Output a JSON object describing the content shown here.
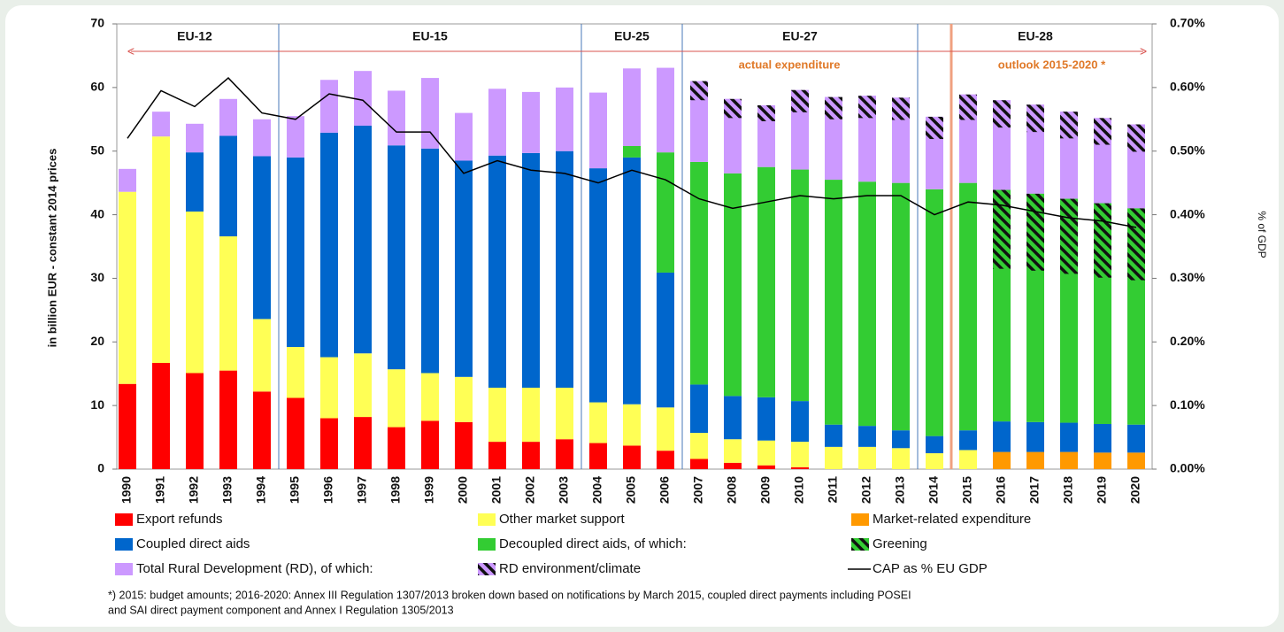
{
  "chart_data": {
    "type": "bar",
    "stacked": true,
    "y_label": "in billion EUR - constant 2014 prices",
    "y2_label": "% of GDP",
    "categories": [
      "1990",
      "1991",
      "1992",
      "1993",
      "1994",
      "1995",
      "1996",
      "1997",
      "1998",
      "1999",
      "2000",
      "2001",
      "2002",
      "2003",
      "2004",
      "2005",
      "2006",
      "2007",
      "2008",
      "2009",
      "2010",
      "2011",
      "2012",
      "2013",
      "2014",
      "2015",
      "2016",
      "2017",
      "2018",
      "2019",
      "2020"
    ],
    "ylim": [
      0,
      70
    ],
    "yticks": [
      0,
      10,
      20,
      30,
      40,
      50,
      60,
      70
    ],
    "y2lim": [
      0,
      0.7
    ],
    "y2ticks": [
      {
        "value": 0,
        "label": "0.00%"
      },
      {
        "value": 0.1,
        "label": "0.10%"
      },
      {
        "value": 0.2,
        "label": "0.20%"
      },
      {
        "value": 0.3,
        "label": "0.30%"
      },
      {
        "value": 0.4,
        "label": "0.40%"
      },
      {
        "value": 0.5,
        "label": "0.50%"
      },
      {
        "value": 0.6,
        "label": "0.60%"
      },
      {
        "value": 0.7,
        "label": "0.70%"
      }
    ],
    "series": [
      {
        "name": "Export refunds",
        "color": "#ff0000",
        "values": [
          13.4,
          16.7,
          15.1,
          15.5,
          12.2,
          11.2,
          8.0,
          8.2,
          6.6,
          7.6,
          7.4,
          4.3,
          4.3,
          4.7,
          4.1,
          3.7,
          2.9,
          1.6,
          1.0,
          0.6,
          0.3,
          null,
          null,
          null,
          null,
          null,
          null,
          null,
          null,
          null,
          null
        ]
      },
      {
        "name": "Other market support",
        "color": "#ffff55",
        "values": [
          30.2,
          35.6,
          25.4,
          21.1,
          11.4,
          8.0,
          9.6,
          10.0,
          9.1,
          7.5,
          7.1,
          8.5,
          8.5,
          8.1,
          6.4,
          6.5,
          6.8,
          4.1,
          3.7,
          3.9,
          4.0,
          3.5,
          3.5,
          3.3,
          2.5,
          3.0,
          null,
          null,
          null,
          null,
          null
        ]
      },
      {
        "name": "Market-related expenditure",
        "color": "#ff9900",
        "values": [
          null,
          null,
          null,
          null,
          null,
          null,
          null,
          null,
          null,
          null,
          null,
          null,
          null,
          null,
          null,
          null,
          null,
          null,
          null,
          null,
          null,
          null,
          null,
          null,
          null,
          null,
          2.7,
          2.7,
          2.7,
          2.6,
          2.6
        ]
      },
      {
        "name": "Coupled direct aids",
        "color": "#0066cc",
        "values": [
          null,
          null,
          9.3,
          15.8,
          25.6,
          29.8,
          35.3,
          35.8,
          35.2,
          35.3,
          34.0,
          36.5,
          36.9,
          37.2,
          36.8,
          38.8,
          21.2,
          7.6,
          6.8,
          6.8,
          6.4,
          3.5,
          3.3,
          2.8,
          2.7,
          3.1,
          4.8,
          4.7,
          4.6,
          4.5,
          4.4
        ]
      },
      {
        "name": "Decoupled direct aids, of which:",
        "color": "#33cc33",
        "values": [
          null,
          null,
          null,
          null,
          null,
          null,
          null,
          null,
          null,
          null,
          null,
          null,
          null,
          null,
          null,
          1.8,
          18.9,
          35.0,
          35.0,
          36.2,
          36.4,
          38.5,
          38.4,
          38.9,
          38.8,
          38.9,
          36.4,
          35.9,
          35.2,
          34.7,
          34.0
        ]
      },
      {
        "name": "Greening",
        "color": "#33cc33",
        "pattern": "hatch",
        "of": 4,
        "values": [
          null,
          null,
          null,
          null,
          null,
          null,
          null,
          null,
          null,
          null,
          null,
          null,
          null,
          null,
          null,
          null,
          null,
          null,
          null,
          null,
          null,
          null,
          null,
          null,
          null,
          null,
          12.4,
          12.1,
          11.8,
          11.7,
          11.3
        ]
      },
      {
        "name": "Total Rural Development (RD), of which:",
        "color": "#cc99ff",
        "values": [
          3.6,
          3.9,
          4.5,
          5.8,
          5.8,
          6.5,
          8.3,
          8.6,
          8.6,
          11.1,
          7.5,
          10.5,
          9.6,
          10.0,
          11.9,
          12.2,
          13.3,
          12.7,
          11.7,
          9.7,
          12.5,
          13.0,
          13.5,
          13.4,
          11.4,
          13.9,
          14.1,
          14.0,
          13.7,
          13.4,
          13.2
        ]
      },
      {
        "name": "RD environment/climate",
        "color": "#cc99ff",
        "pattern": "hatch",
        "of": 6,
        "values": [
          null,
          null,
          null,
          null,
          null,
          null,
          null,
          null,
          null,
          null,
          null,
          null,
          null,
          null,
          null,
          null,
          null,
          3.0,
          3.0,
          2.5,
          3.5,
          3.5,
          3.5,
          3.5,
          3.5,
          4.0,
          4.3,
          4.3,
          4.2,
          4.2,
          4.3
        ]
      },
      {
        "name": "CAP as % EU GDP",
        "color": "#000000",
        "type": "line",
        "axis": "y2",
        "values": [
          0.52,
          0.595,
          0.57,
          0.615,
          0.56,
          0.55,
          0.59,
          0.58,
          0.53,
          0.53,
          0.465,
          0.485,
          0.47,
          0.465,
          0.45,
          0.47,
          0.455,
          0.425,
          0.41,
          0.42,
          0.43,
          0.425,
          0.43,
          0.43,
          0.4,
          0.42,
          0.415,
          0.405,
          0.395,
          0.39,
          0.38
        ]
      }
    ],
    "eras": [
      {
        "label": "EU-12",
        "from": "1990",
        "to": "1994"
      },
      {
        "label": "EU-15",
        "from": "1995",
        "to": "2003"
      },
      {
        "label": "EU-25",
        "from": "2004",
        "to": "2006"
      },
      {
        "label": "EU-27",
        "from": "2007",
        "to": "2013"
      },
      {
        "label": "EU-28",
        "from": "2014",
        "to": "2020"
      }
    ],
    "annotations": [
      {
        "text": "actual expenditure",
        "from": "1990",
        "to": "2014"
      },
      {
        "text": "outlook 2015-2020 *",
        "from": "2015",
        "to": "2020"
      }
    ],
    "footnote": [
      "*) 2015: budget amounts; 2016-2020: Annex III Regulation 1307/2013 broken down based on notifications by March 2015, coupled direct payments including POSEI",
      "and SAI direct payment component and Annex I Regulation 1305/2013"
    ]
  }
}
